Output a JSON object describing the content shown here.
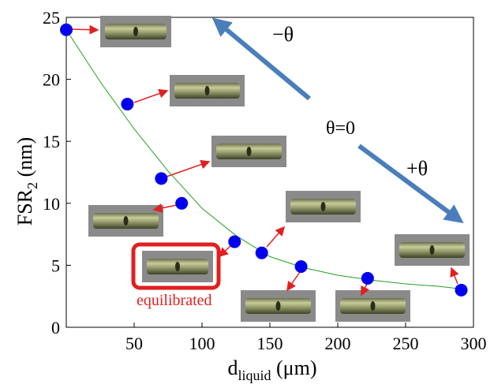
{
  "chart_data": {
    "type": "scatter",
    "ylabel": {
      "main": "FSR",
      "sub": "2",
      "rest": " (nm)"
    },
    "xlabel": {
      "main": "d",
      "sub": "liquid",
      "rest": " (μm)"
    },
    "xlim": [
      0,
      300
    ],
    "xticks": [
      50,
      100,
      150,
      200,
      250,
      300
    ],
    "ylim": [
      0,
      25
    ],
    "yticks": [
      0,
      5,
      10,
      15,
      20,
      25
    ],
    "series": [
      {
        "color": "#0000ee",
        "x": [
          0,
          45,
          70,
          85,
          124,
          144,
          173,
          222,
          291
        ],
        "values": [
          24,
          18,
          12,
          10,
          6.9,
          6,
          4.9,
          3.95,
          3
        ]
      },
      {
        "color": "#22a022",
        "line": true,
        "x": [
          0,
          25,
          50,
          75,
          100,
          125,
          150,
          175,
          200,
          225,
          250,
          275,
          290
        ],
        "values": [
          24,
          19.8,
          16,
          12.6,
          9.6,
          7.4,
          5.7,
          4.8,
          4.2,
          3.8,
          3.5,
          3.3,
          3.1
        ]
      }
    ],
    "annotations": [
      "−θ",
      "θ=0",
      "+θ",
      "equilibrated"
    ]
  }
}
